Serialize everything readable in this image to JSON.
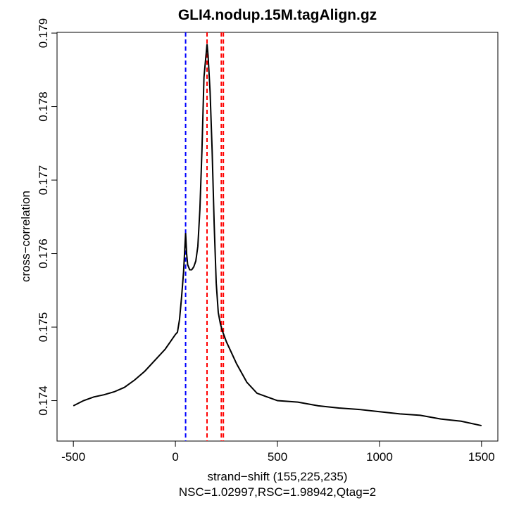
{
  "chart_data": {
    "type": "line",
    "title": "GLI4.nodup.15M.tagAlign.gz",
    "x_label": "strand−shift (155,225,235)",
    "subtitle": "NSC=1.02997,RSC=1.98942,Qtag=2",
    "y_label": "cross−correlation",
    "x": [
      -500,
      -450,
      -400,
      -350,
      -300,
      -250,
      -200,
      -150,
      -100,
      -50,
      -25,
      0,
      10,
      20,
      30,
      40,
      50,
      55,
      60,
      70,
      80,
      90,
      100,
      110,
      120,
      130,
      140,
      150,
      155,
      160,
      170,
      180,
      190,
      200,
      210,
      220,
      230,
      250,
      275,
      300,
      350,
      400,
      450,
      500,
      600,
      700,
      800,
      900,
      1000,
      1100,
      1200,
      1300,
      1400,
      1500
    ],
    "series": [
      {
        "color": "#000000",
        "values": [
          0.17393,
          0.174,
          0.17405,
          0.17408,
          0.17412,
          0.17418,
          0.17428,
          0.1744,
          0.17455,
          0.1747,
          0.1748,
          0.1749,
          0.17493,
          0.1751,
          0.1754,
          0.17575,
          0.17628,
          0.176,
          0.17585,
          0.17578,
          0.17578,
          0.17582,
          0.1759,
          0.1761,
          0.1766,
          0.1774,
          0.1784,
          0.1787,
          0.17885,
          0.1787,
          0.1782,
          0.1774,
          0.1764,
          0.1756,
          0.1752,
          0.17505,
          0.17495,
          0.1748,
          0.17465,
          0.1745,
          0.17425,
          0.1741,
          0.17405,
          0.174,
          0.17398,
          0.17393,
          0.1739,
          0.17388,
          0.17385,
          0.17382,
          0.1738,
          0.17375,
          0.17372,
          0.17366
        ]
      }
    ],
    "vlines": [
      {
        "value": 50,
        "color": "#0000ff"
      },
      {
        "value": 155,
        "color": "#ff0000"
      },
      {
        "value": 225,
        "color": "#ff0000"
      },
      {
        "value": 235,
        "color": "#ff0000"
      }
    ],
    "xlim": [
      -580,
      1580
    ],
    "xticks": [
      -500,
      0,
      500,
      1000,
      1500
    ],
    "ylim": [
      0.17345,
      0.17901
    ],
    "yticks": [
      0.174,
      0.175,
      0.176,
      0.177,
      0.178,
      0.179
    ]
  }
}
